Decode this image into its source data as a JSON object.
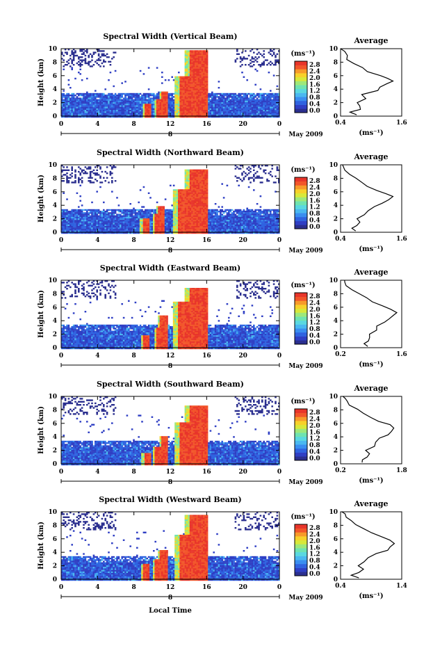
{
  "figure": {
    "xlabel": "Local Time",
    "date_label": "May 2009",
    "day_marker": "8",
    "height_label": "Height (km)",
    "avg_title": "Average",
    "avg_unit": "(ms⁻¹)",
    "cbar_unit": "(ms⁻¹)"
  },
  "colors": {
    "scale": [
      "#2b2f8f",
      "#2f3fc4",
      "#2f63e0",
      "#3a8ef0",
      "#4ab8f0",
      "#5ad8e0",
      "#6fe3b0",
      "#9ee87a",
      "#d8e83a",
      "#f7d12a",
      "#f79a2a",
      "#f2552a",
      "#e8352a"
    ]
  },
  "chart_data": [
    {
      "type": "heatmap",
      "title": "Spectral Width (Vertical Beam)",
      "x_ticks": [
        "0",
        "4",
        "8",
        "12",
        "16",
        "20",
        "0"
      ],
      "y_ticks": [
        "0",
        "2",
        "4",
        "6",
        "8",
        "10"
      ],
      "cbar_ticks": [
        "2.8",
        "2.4",
        "2.0",
        "1.6",
        "1.2",
        "0.8",
        "0.4",
        "0.0"
      ],
      "xlim": [
        0,
        24
      ],
      "ylim": [
        0,
        10
      ],
      "avg_x_ticks": [
        "0.4",
        "1.6"
      ],
      "avg_xlim": [
        0.4,
        1.6
      ],
      "avg_profile": [
        [
          0.7,
          0.2
        ],
        [
          0.6,
          0.6
        ],
        [
          0.8,
          1.0
        ],
        [
          0.75,
          1.5
        ],
        [
          0.7,
          2.0
        ],
        [
          0.9,
          2.6
        ],
        [
          0.85,
          3.2
        ],
        [
          1.1,
          3.8
        ],
        [
          1.2,
          4.3
        ],
        [
          1.3,
          4.8
        ],
        [
          1.4,
          5.2
        ],
        [
          1.3,
          5.6
        ],
        [
          1.15,
          6.0
        ],
        [
          0.95,
          6.6
        ],
        [
          0.8,
          7.2
        ],
        [
          0.65,
          7.8
        ],
        [
          0.55,
          8.4
        ],
        [
          0.5,
          9.0
        ],
        [
          0.45,
          9.6
        ],
        [
          0.42,
          10.0
        ]
      ],
      "storm": {
        "cells": [
          [
            9.5,
            2.0
          ],
          [
            10.8,
            2.6
          ],
          [
            11.3,
            3.8
          ],
          [
            14.0,
            6.0
          ],
          [
            15.0,
            10.0
          ]
        ],
        "end": 15.5
      }
    },
    {
      "type": "heatmap",
      "title": "Spectral Width (Northward Beam)",
      "x_ticks": [
        "0",
        "4",
        "8",
        "12",
        "16",
        "20",
        "0"
      ],
      "y_ticks": [
        "0",
        "2",
        "4",
        "6",
        "8",
        "10"
      ],
      "cbar_ticks": [
        "2.8",
        "2.4",
        "2.0",
        "1.6",
        "1.2",
        "0.8",
        "0.4",
        "0.0"
      ],
      "xlim": [
        0,
        24
      ],
      "ylim": [
        0,
        10
      ],
      "avg_x_ticks": [
        "0.4",
        "1.6"
      ],
      "avg_xlim": [
        0.4,
        1.6
      ],
      "avg_profile": [
        [
          0.7,
          0.2
        ],
        [
          0.65,
          0.6
        ],
        [
          0.75,
          1.0
        ],
        [
          0.8,
          1.5
        ],
        [
          0.75,
          2.0
        ],
        [
          0.9,
          2.6
        ],
        [
          0.95,
          3.2
        ],
        [
          1.1,
          3.8
        ],
        [
          1.25,
          4.3
        ],
        [
          1.35,
          4.8
        ],
        [
          1.45,
          5.3
        ],
        [
          1.3,
          5.7
        ],
        [
          1.1,
          6.2
        ],
        [
          0.95,
          6.8
        ],
        [
          0.8,
          7.4
        ],
        [
          0.7,
          8.0
        ],
        [
          0.6,
          8.6
        ],
        [
          0.5,
          9.2
        ],
        [
          0.45,
          9.7
        ],
        [
          0.42,
          10.0
        ]
      ],
      "storm": {
        "cells": [
          [
            9.2,
            2.2
          ],
          [
            10.6,
            2.8
          ],
          [
            11.0,
            4.0
          ],
          [
            13.8,
            6.5
          ],
          [
            15.0,
            9.5
          ]
        ],
        "end": 15.5
      }
    },
    {
      "type": "heatmap",
      "title": "Spectral Width (Eastward Beam)",
      "x_ticks": [
        "0",
        "4",
        "8",
        "12",
        "16",
        "20",
        "0"
      ],
      "y_ticks": [
        "0",
        "2",
        "4",
        "6",
        "8",
        "10"
      ],
      "cbar_ticks": [
        "2.8",
        "2.4",
        "2.0",
        "1.6",
        "1.2",
        "0.8",
        "0.4",
        "0.0"
      ],
      "xlim": [
        0,
        24
      ],
      "ylim": [
        0,
        10
      ],
      "avg_x_ticks": [
        "0.2",
        "1.6"
      ],
      "avg_xlim": [
        0.2,
        1.6
      ],
      "avg_profile": [
        [
          0.8,
          0.2
        ],
        [
          0.7,
          0.6
        ],
        [
          0.85,
          1.0
        ],
        [
          0.9,
          1.5
        ],
        [
          0.85,
          2.0
        ],
        [
          1.0,
          2.6
        ],
        [
          1.05,
          3.2
        ],
        [
          1.2,
          3.8
        ],
        [
          1.3,
          4.3
        ],
        [
          1.4,
          4.8
        ],
        [
          1.5,
          5.2
        ],
        [
          1.35,
          5.7
        ],
        [
          1.15,
          6.2
        ],
        [
          0.95,
          6.8
        ],
        [
          0.8,
          7.4
        ],
        [
          0.6,
          8.0
        ],
        [
          0.45,
          8.6
        ],
        [
          0.35,
          9.2
        ],
        [
          0.3,
          9.7
        ],
        [
          0.25,
          10.0
        ]
      ],
      "storm": {
        "cells": [
          [
            9.3,
            2.0
          ],
          [
            10.7,
            3.0
          ],
          [
            11.2,
            4.8
          ],
          [
            13.8,
            7.0
          ],
          [
            15.0,
            9.0
          ]
        ],
        "end": 15.6
      }
    },
    {
      "type": "heatmap",
      "title": "Spectral Width (Southward Beam)",
      "x_ticks": [
        "0",
        "4",
        "8",
        "12",
        "16",
        "20",
        "0"
      ],
      "y_ticks": [
        "0",
        "2",
        "4",
        "6",
        "8",
        "10"
      ],
      "cbar_ticks": [
        "2.8",
        "2.4",
        "2.0",
        "1.6",
        "1.2",
        "0.8",
        "0.4",
        "0.0"
      ],
      "xlim": [
        0,
        24
      ],
      "ylim": [
        0,
        10
      ],
      "avg_x_ticks": [
        "0.2",
        "1.8"
      ],
      "avg_xlim": [
        0.2,
        1.8
      ],
      "avg_profile": [
        [
          0.8,
          0.2
        ],
        [
          0.75,
          0.6
        ],
        [
          0.9,
          1.0
        ],
        [
          0.95,
          1.5
        ],
        [
          0.9,
          2.0
        ],
        [
          1.05,
          2.6
        ],
        [
          1.1,
          3.2
        ],
        [
          1.25,
          3.8
        ],
        [
          1.4,
          4.3
        ],
        [
          1.5,
          4.8
        ],
        [
          1.6,
          5.3
        ],
        [
          1.45,
          5.8
        ],
        [
          1.2,
          6.3
        ],
        [
          1.0,
          6.9
        ],
        [
          0.8,
          7.5
        ],
        [
          0.6,
          8.1
        ],
        [
          0.45,
          8.7
        ],
        [
          0.35,
          9.3
        ],
        [
          0.3,
          9.7
        ],
        [
          0.25,
          10.0
        ]
      ],
      "storm": {
        "cells": [
          [
            9.4,
            1.8
          ],
          [
            10.6,
            2.6
          ],
          [
            11.3,
            4.2
          ],
          [
            13.9,
            6.2
          ],
          [
            15.0,
            8.8
          ]
        ],
        "end": 15.6
      }
    },
    {
      "type": "heatmap",
      "title": "Spectral Width (Westward Beam)",
      "x_ticks": [
        "0",
        "4",
        "8",
        "12",
        "16",
        "20",
        "0"
      ],
      "y_ticks": [
        "0",
        "2",
        "4",
        "6",
        "8",
        "10"
      ],
      "cbar_ticks": [
        "2.8",
        "2.4",
        "2.0",
        "1.6",
        "1.2",
        "0.8",
        "0.4",
        "0.0"
      ],
      "xlim": [
        0,
        24
      ],
      "ylim": [
        0,
        10
      ],
      "avg_x_ticks": [
        "0.4",
        "1.4"
      ],
      "avg_xlim": [
        0.4,
        1.4
      ],
      "avg_profile": [
        [
          0.7,
          0.2
        ],
        [
          0.6,
          0.6
        ],
        [
          0.7,
          1.0
        ],
        [
          0.75,
          1.5
        ],
        [
          0.7,
          2.0
        ],
        [
          0.8,
          2.6
        ],
        [
          0.85,
          3.2
        ],
        [
          1.0,
          3.8
        ],
        [
          1.15,
          4.3
        ],
        [
          1.2,
          4.8
        ],
        [
          1.3,
          5.3
        ],
        [
          1.2,
          5.8
        ],
        [
          1.05,
          6.3
        ],
        [
          0.9,
          6.9
        ],
        [
          0.75,
          7.5
        ],
        [
          0.65,
          8.1
        ],
        [
          0.55,
          8.7
        ],
        [
          0.5,
          9.2
        ],
        [
          0.45,
          9.7
        ],
        [
          0.42,
          10.0
        ]
      ],
      "storm": {
        "cells": [
          [
            9.3,
            2.3
          ],
          [
            10.6,
            3.0
          ],
          [
            11.2,
            4.5
          ],
          [
            13.9,
            6.8
          ],
          [
            15.0,
            9.6
          ]
        ],
        "end": 15.6
      }
    }
  ]
}
